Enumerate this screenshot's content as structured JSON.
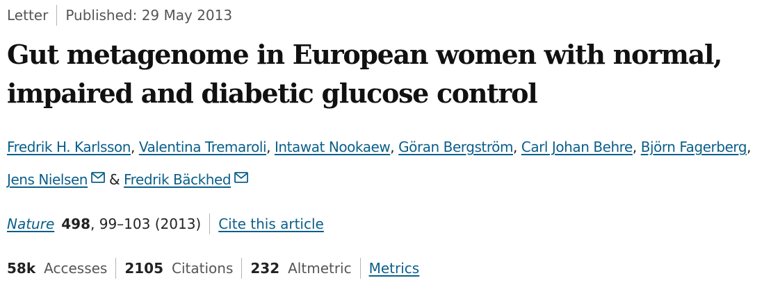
{
  "article_type": "Letter",
  "published": "Published: 29 May 2013",
  "title_line1": "Gut metagenome in European women with normal,",
  "title_line2": "impaired and diabetic glucose control",
  "authors": {
    "a1": "Fredrik H. Karlsson",
    "a2": "Valentina Tremaroli",
    "a3": "Intawat Nookaew",
    "a4": "Göran Bergström",
    "a5": "Carl Johan Behre",
    "a6": "Björn Fagerberg",
    "a7": "Jens Nielsen",
    "a8": "Fredrik Bäckhed",
    "comma": ",",
    "ampersand": "&"
  },
  "journal": {
    "name": "Nature",
    "volume": "498",
    "pages": ", 99–103 (2013)",
    "cite_label": "Cite this article"
  },
  "stats": {
    "accesses_value": "58k",
    "accesses_label": "Accesses",
    "citations_value": "2105",
    "citations_label": "Citations",
    "altmetric_value": "232",
    "altmetric_label": "Altmetric",
    "metrics_link": "Metrics"
  },
  "colors": {
    "link": "#0a5e8a",
    "text": "#222222",
    "muted": "#555555"
  },
  "icons": {
    "mail": "mail-icon"
  }
}
